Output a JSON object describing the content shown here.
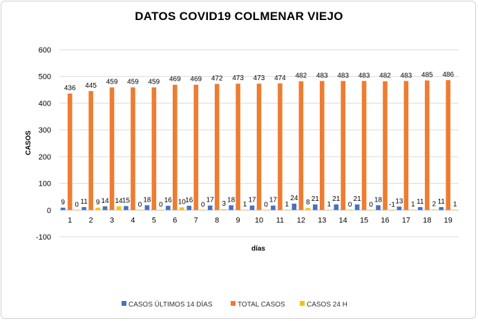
{
  "chart_data": {
    "type": "bar",
    "title": "DATOS COVID19 COLMENAR VIEJO",
    "xlabel": "días",
    "ylabel": "CASOS",
    "ylim": [
      -100,
      600
    ],
    "yticks": [
      600,
      500,
      400,
      300,
      200,
      100,
      0,
      -100
    ],
    "grid": true,
    "legend_position": "bottom",
    "categories": [
      "1",
      "2",
      "3",
      "4",
      "5",
      "6",
      "7",
      "8",
      "9",
      "10",
      "11",
      "12",
      "13",
      "14",
      "15",
      "16",
      "17",
      "18",
      "19"
    ],
    "series": [
      {
        "name": "CASOS ÚLTIMOS 14 DÍAS",
        "color": "#4472C4",
        "values": [
          9,
          11,
          14,
          15,
          18,
          16,
          16,
          17,
          18,
          17,
          17,
          24,
          21,
          21,
          21,
          18,
          13,
          11,
          11
        ]
      },
      {
        "name": "TOTAL CASOS",
        "color": "#ED7D31",
        "values": [
          436,
          445,
          459,
          459,
          459,
          469,
          469,
          472,
          473,
          473,
          474,
          482,
          483,
          483,
          483,
          482,
          483,
          485,
          486
        ]
      },
      {
        "name": "CASOS 24 H",
        "color": "#FFC000",
        "values": [
          0,
          9,
          14,
          0,
          0,
          10,
          0,
          3,
          1,
          0,
          1,
          8,
          1,
          0,
          0,
          -1,
          1,
          2,
          1
        ]
      }
    ]
  }
}
